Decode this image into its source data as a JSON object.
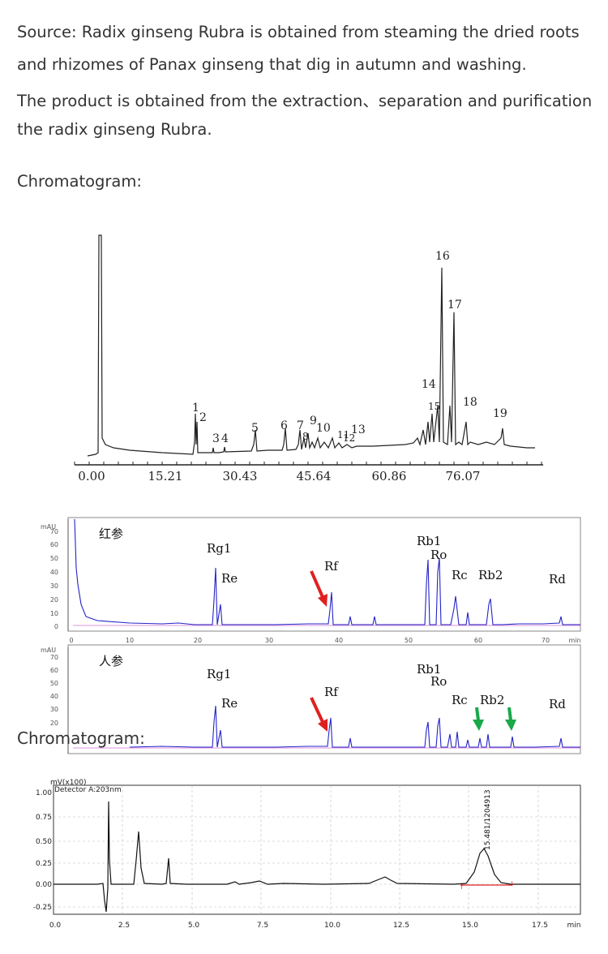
{
  "text": {
    "line1": "Source: Radix ginseng Rubra is obtained from steaming the dried roots",
    "line2": "and rhizomes of Panax ginseng that dig in autumn and washing.",
    "line3": "The product is obtained from the extraction、separation and purification",
    "line4": "the radix ginseng Rubra.",
    "heading1": "Chromatogram:",
    "heading2": "Chromatogram:"
  },
  "chart_data": [
    {
      "type": "line",
      "x_ticks": [
        "0.00",
        "15.21",
        "30.43",
        "45.64",
        "60.86",
        "76.07"
      ],
      "peak_labels": [
        "1",
        "2",
        "3",
        "4",
        "5",
        "6",
        "7",
        "8",
        "9",
        "10",
        "11",
        "12",
        "13",
        "14",
        "15",
        "16",
        "17",
        "18",
        "19"
      ]
    },
    {
      "type": "line",
      "panels": [
        {
          "label": "红参",
          "peaks": [
            "Rg1",
            "Re",
            "Rf",
            "Rb1",
            "Ro",
            "Rc",
            "Rb2",
            "Rd"
          ]
        },
        {
          "label": "人参",
          "peaks": [
            "Rg1",
            "Re",
            "Rf",
            "Rb1",
            "Ro",
            "Rc",
            "Rb2",
            "Rd"
          ]
        }
      ],
      "y_unit": "mAU",
      "y_ticks": [
        "0",
        "10",
        "20",
        "30",
        "40",
        "50",
        "60",
        "70"
      ],
      "x_ticks": [
        "0",
        "10",
        "20",
        "30",
        "40",
        "50",
        "60",
        "70"
      ],
      "x_unit": "min"
    },
    {
      "type": "line",
      "y_unit": "mV(x100)",
      "detector": "Detector A:203nm",
      "y_ticks": [
        "1.00",
        "0.75",
        "0.50",
        "0.25",
        "0.00",
        "-0.25"
      ],
      "x_ticks": [
        "0.0",
        "2.5",
        "5.0",
        "7.5",
        "10.0",
        "12.5",
        "15.0",
        "17.5"
      ],
      "x_unit": "min",
      "peak_annotation": "15.481/1204913"
    }
  ]
}
